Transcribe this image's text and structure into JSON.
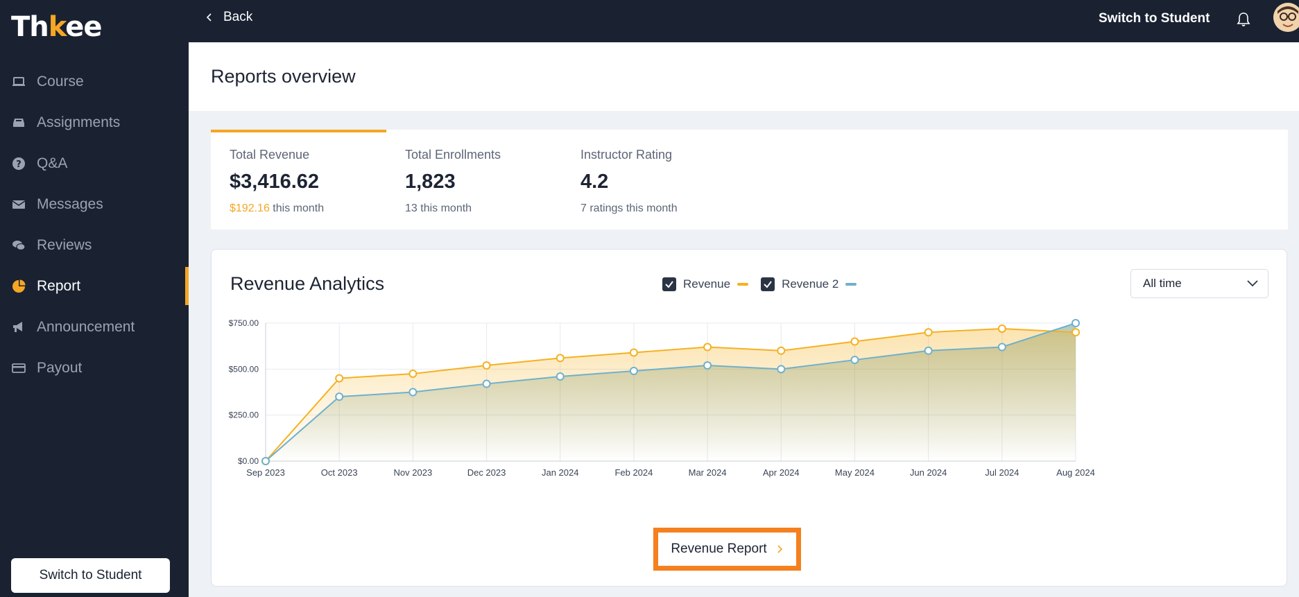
{
  "app": {
    "logo_parts": [
      "Th",
      "k",
      "ee"
    ]
  },
  "sidebar": {
    "items": [
      {
        "label": "Course",
        "icon": "laptop-icon"
      },
      {
        "label": "Assignments",
        "icon": "inbox-icon"
      },
      {
        "label": "Q&A",
        "icon": "question-icon"
      },
      {
        "label": "Messages",
        "icon": "envelope-icon"
      },
      {
        "label": "Reviews",
        "icon": "chat-bubbles-icon"
      },
      {
        "label": "Report",
        "icon": "pie-chart-icon",
        "active": true
      },
      {
        "label": "Announcement",
        "icon": "megaphone-icon"
      },
      {
        "label": "Payout",
        "icon": "credit-card-icon"
      }
    ],
    "switch_label": "Switch to Student"
  },
  "topbar": {
    "back_label": "Back",
    "switch_label": "Switch to Student"
  },
  "page": {
    "title": "Reports overview"
  },
  "stats": [
    {
      "label": "Total Revenue",
      "value": "$3,416.62",
      "sub_highlight": "$192.16",
      "sub_text": " this month"
    },
    {
      "label": "Total Enrollments",
      "value": "1,823",
      "sub_highlight": "",
      "sub_text": "13 this month"
    },
    {
      "label": "Instructor Rating",
      "value": "4.2",
      "sub_highlight": "",
      "sub_text": "7 ratings this month"
    }
  ],
  "analytics": {
    "title": "Revenue Analytics",
    "legend": [
      {
        "label": "Revenue",
        "color": "#f5b120",
        "checked": true
      },
      {
        "label": "Revenue 2",
        "color": "#6fb0cb",
        "checked": true
      }
    ],
    "period": "All time",
    "button_label": "Revenue Report"
  },
  "colors": {
    "accent": "#f5a623",
    "sidebar_bg": "#1a2232",
    "button_highlight": "#f5801f"
  },
  "chart_data": {
    "type": "area",
    "categories": [
      "Sep 2023",
      "Oct 2023",
      "Nov 2023",
      "Dec 2023",
      "Jan 2024",
      "Feb 2024",
      "Mar 2024",
      "Apr 2024",
      "May 2024",
      "Jun 2024",
      "Jul 2024",
      "Aug 2024"
    ],
    "series": [
      {
        "name": "Revenue",
        "values": [
          0,
          450,
          475,
          520,
          560,
          590,
          620,
          600,
          650,
          700,
          720,
          700
        ]
      },
      {
        "name": "Revenue 2",
        "values": [
          0,
          350,
          375,
          420,
          460,
          490,
          520,
          500,
          550,
          600,
          620,
          750
        ]
      }
    ],
    "yticks": [
      "$0.00",
      "$250.00",
      "$500.00",
      "$750.00"
    ],
    "ylim": [
      0,
      750
    ],
    "grid": true
  }
}
